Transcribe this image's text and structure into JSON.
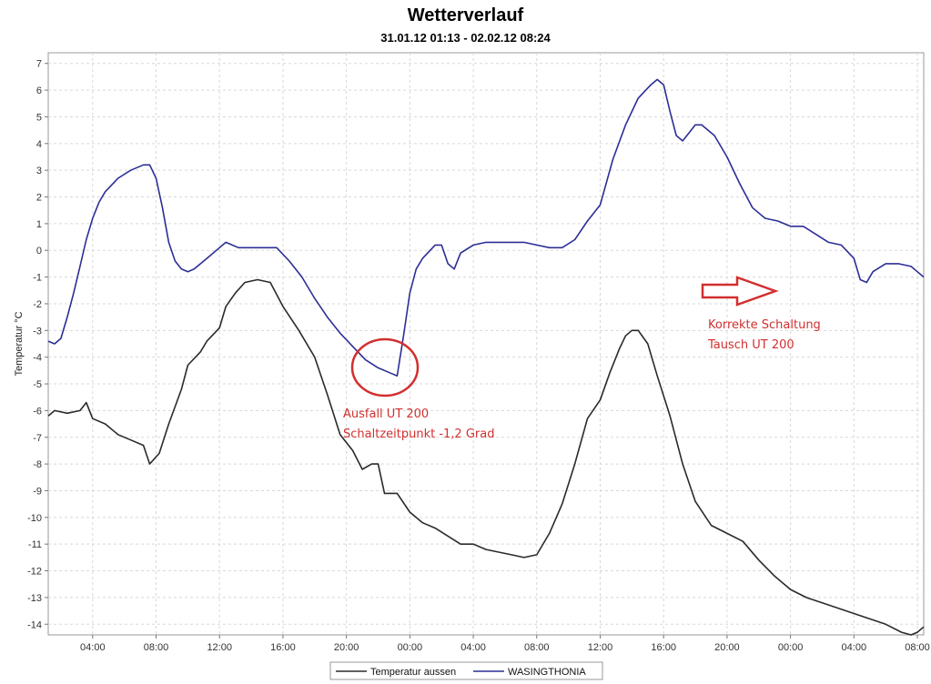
{
  "chart_data": {
    "type": "line",
    "title": "Wetterverlauf",
    "subtitle": "31.01.12 01:13 - 02.02.12 08:24",
    "ylabel": "Temperatur  °C",
    "xlabel": "",
    "ylim": [
      -14.4,
      7.4
    ],
    "y_ticks": [
      7,
      6,
      5,
      4,
      3,
      2,
      1,
      0,
      -1,
      -2,
      -3,
      -4,
      -5,
      -6,
      -7,
      -8,
      -9,
      -10,
      -11,
      -12,
      -13,
      -14
    ],
    "x_range_hours": [
      1.2,
      56.4
    ],
    "x_ticks": [
      {
        "h": 4,
        "label": "04:00"
      },
      {
        "h": 8,
        "label": "08:00"
      },
      {
        "h": 12,
        "label": "12:00"
      },
      {
        "h": 16,
        "label": "16:00"
      },
      {
        "h": 20,
        "label": "20:00"
      },
      {
        "h": 24,
        "label": "00:00"
      },
      {
        "h": 28,
        "label": "04:00"
      },
      {
        "h": 32,
        "label": "08:00"
      },
      {
        "h": 36,
        "label": "12:00"
      },
      {
        "h": 40,
        "label": "16:00"
      },
      {
        "h": 44,
        "label": "20:00"
      },
      {
        "h": 48,
        "label": "00:00"
      },
      {
        "h": 52,
        "label": "04:00"
      },
      {
        "h": 56,
        "label": "08:00"
      }
    ],
    "grid": true,
    "legend_position": "bottom",
    "series": [
      {
        "name": "Temperatur aussen",
        "color": "#2a2a2a",
        "points": [
          [
            1.2,
            -6.2
          ],
          [
            1.6,
            -6.0
          ],
          [
            2.4,
            -6.1
          ],
          [
            3.2,
            -6.0
          ],
          [
            3.6,
            -5.7
          ],
          [
            4.0,
            -6.3
          ],
          [
            4.8,
            -6.5
          ],
          [
            5.6,
            -6.9
          ],
          [
            6.4,
            -7.1
          ],
          [
            7.2,
            -7.3
          ],
          [
            7.6,
            -8.0
          ],
          [
            8.2,
            -7.6
          ],
          [
            8.8,
            -6.5
          ],
          [
            9.6,
            -5.2
          ],
          [
            10.0,
            -4.3
          ],
          [
            10.8,
            -3.8
          ],
          [
            11.2,
            -3.4
          ],
          [
            12.0,
            -2.9
          ],
          [
            12.4,
            -2.1
          ],
          [
            13.0,
            -1.6
          ],
          [
            13.6,
            -1.2
          ],
          [
            14.4,
            -1.1
          ],
          [
            15.2,
            -1.2
          ],
          [
            16.0,
            -2.1
          ],
          [
            17.0,
            -3.0
          ],
          [
            18.0,
            -4.0
          ],
          [
            18.8,
            -5.4
          ],
          [
            19.6,
            -6.9
          ],
          [
            20.4,
            -7.5
          ],
          [
            21.0,
            -8.2
          ],
          [
            21.6,
            -8.0
          ],
          [
            22.0,
            -8.0
          ],
          [
            22.4,
            -9.1
          ],
          [
            23.2,
            -9.1
          ],
          [
            24.0,
            -9.8
          ],
          [
            24.8,
            -10.2
          ],
          [
            25.6,
            -10.4
          ],
          [
            26.4,
            -10.7
          ],
          [
            27.2,
            -11.0
          ],
          [
            28.0,
            -11.0
          ],
          [
            28.8,
            -11.2
          ],
          [
            29.6,
            -11.3
          ],
          [
            30.4,
            -11.4
          ],
          [
            31.2,
            -11.5
          ],
          [
            32.0,
            -11.4
          ],
          [
            32.8,
            -10.6
          ],
          [
            33.6,
            -9.5
          ],
          [
            34.4,
            -8.0
          ],
          [
            35.2,
            -6.3
          ],
          [
            36.0,
            -5.6
          ],
          [
            36.6,
            -4.6
          ],
          [
            37.2,
            -3.7
          ],
          [
            37.6,
            -3.2
          ],
          [
            38.0,
            -3.0
          ],
          [
            38.4,
            -3.0
          ],
          [
            39.0,
            -3.5
          ],
          [
            39.6,
            -4.7
          ],
          [
            40.4,
            -6.2
          ],
          [
            41.2,
            -8.0
          ],
          [
            42.0,
            -9.4
          ],
          [
            43.0,
            -10.3
          ],
          [
            44.0,
            -10.6
          ],
          [
            45.0,
            -10.9
          ],
          [
            46.0,
            -11.6
          ],
          [
            47.0,
            -12.2
          ],
          [
            48.0,
            -12.7
          ],
          [
            49.0,
            -13.0
          ],
          [
            50.0,
            -13.2
          ],
          [
            51.0,
            -13.4
          ],
          [
            52.0,
            -13.6
          ],
          [
            53.0,
            -13.8
          ],
          [
            54.0,
            -14.0
          ],
          [
            55.0,
            -14.3
          ],
          [
            55.6,
            -14.4
          ],
          [
            56.0,
            -14.3
          ],
          [
            56.4,
            -14.1
          ]
        ]
      },
      {
        "name": "WASINGTHONIA",
        "color": "#2c2e95",
        "points": [
          [
            1.2,
            -3.4
          ],
          [
            1.6,
            -3.5
          ],
          [
            2.0,
            -3.3
          ],
          [
            2.4,
            -2.5
          ],
          [
            2.8,
            -1.6
          ],
          [
            3.2,
            -0.6
          ],
          [
            3.6,
            0.4
          ],
          [
            4.0,
            1.2
          ],
          [
            4.4,
            1.8
          ],
          [
            4.8,
            2.2
          ],
          [
            5.6,
            2.7
          ],
          [
            6.4,
            3.0
          ],
          [
            7.2,
            3.2
          ],
          [
            7.6,
            3.2
          ],
          [
            8.0,
            2.7
          ],
          [
            8.4,
            1.6
          ],
          [
            8.8,
            0.3
          ],
          [
            9.2,
            -0.4
          ],
          [
            9.6,
            -0.7
          ],
          [
            10.0,
            -0.8
          ],
          [
            10.4,
            -0.7
          ],
          [
            11.2,
            -0.3
          ],
          [
            12.0,
            0.1
          ],
          [
            12.4,
            0.3
          ],
          [
            13.2,
            0.1
          ],
          [
            14.0,
            0.1
          ],
          [
            14.8,
            0.1
          ],
          [
            15.6,
            0.1
          ],
          [
            16.4,
            -0.4
          ],
          [
            17.2,
            -1.0
          ],
          [
            18.0,
            -1.8
          ],
          [
            18.8,
            -2.5
          ],
          [
            19.6,
            -3.1
          ],
          [
            20.4,
            -3.6
          ],
          [
            21.2,
            -4.1
          ],
          [
            22.0,
            -4.4
          ],
          [
            22.8,
            -4.6
          ],
          [
            23.2,
            -4.7
          ],
          [
            23.6,
            -3.2
          ],
          [
            24.0,
            -1.6
          ],
          [
            24.4,
            -0.7
          ],
          [
            24.8,
            -0.3
          ],
          [
            25.6,
            0.2
          ],
          [
            26.0,
            0.2
          ],
          [
            26.4,
            -0.5
          ],
          [
            26.8,
            -0.7
          ],
          [
            27.2,
            -0.1
          ],
          [
            28.0,
            0.2
          ],
          [
            28.8,
            0.3
          ],
          [
            29.6,
            0.3
          ],
          [
            30.4,
            0.3
          ],
          [
            31.2,
            0.3
          ],
          [
            32.0,
            0.2
          ],
          [
            32.8,
            0.1
          ],
          [
            33.6,
            0.1
          ],
          [
            34.4,
            0.4
          ],
          [
            35.2,
            1.1
          ],
          [
            36.0,
            1.7
          ],
          [
            36.8,
            3.4
          ],
          [
            37.6,
            4.7
          ],
          [
            38.4,
            5.7
          ],
          [
            39.2,
            6.2
          ],
          [
            39.6,
            6.4
          ],
          [
            40.0,
            6.2
          ],
          [
            40.4,
            5.2
          ],
          [
            40.8,
            4.3
          ],
          [
            41.2,
            4.1
          ],
          [
            41.6,
            4.4
          ],
          [
            42.0,
            4.7
          ],
          [
            42.4,
            4.7
          ],
          [
            43.2,
            4.3
          ],
          [
            44.0,
            3.5
          ],
          [
            44.8,
            2.5
          ],
          [
            45.6,
            1.6
          ],
          [
            46.4,
            1.2
          ],
          [
            47.2,
            1.1
          ],
          [
            48.0,
            0.9
          ],
          [
            48.8,
            0.9
          ],
          [
            49.6,
            0.6
          ],
          [
            50.4,
            0.3
          ],
          [
            51.2,
            0.2
          ],
          [
            52.0,
            -0.3
          ],
          [
            52.4,
            -1.1
          ],
          [
            52.8,
            -1.2
          ],
          [
            53.2,
            -0.8
          ],
          [
            54.0,
            -0.5
          ],
          [
            54.8,
            -0.5
          ],
          [
            55.6,
            -0.6
          ],
          [
            56.0,
            -0.8
          ],
          [
            56.4,
            -1.0
          ]
        ]
      }
    ],
    "annotations": {
      "left_line1": "Ausfall UT 200",
      "left_line2": "Schaltzeitpunkt -1,2 Grad",
      "right_line1": "Korrekte Schaltung",
      "right_line2": "Tausch UT 200",
      "color": "#d22f2f"
    }
  }
}
